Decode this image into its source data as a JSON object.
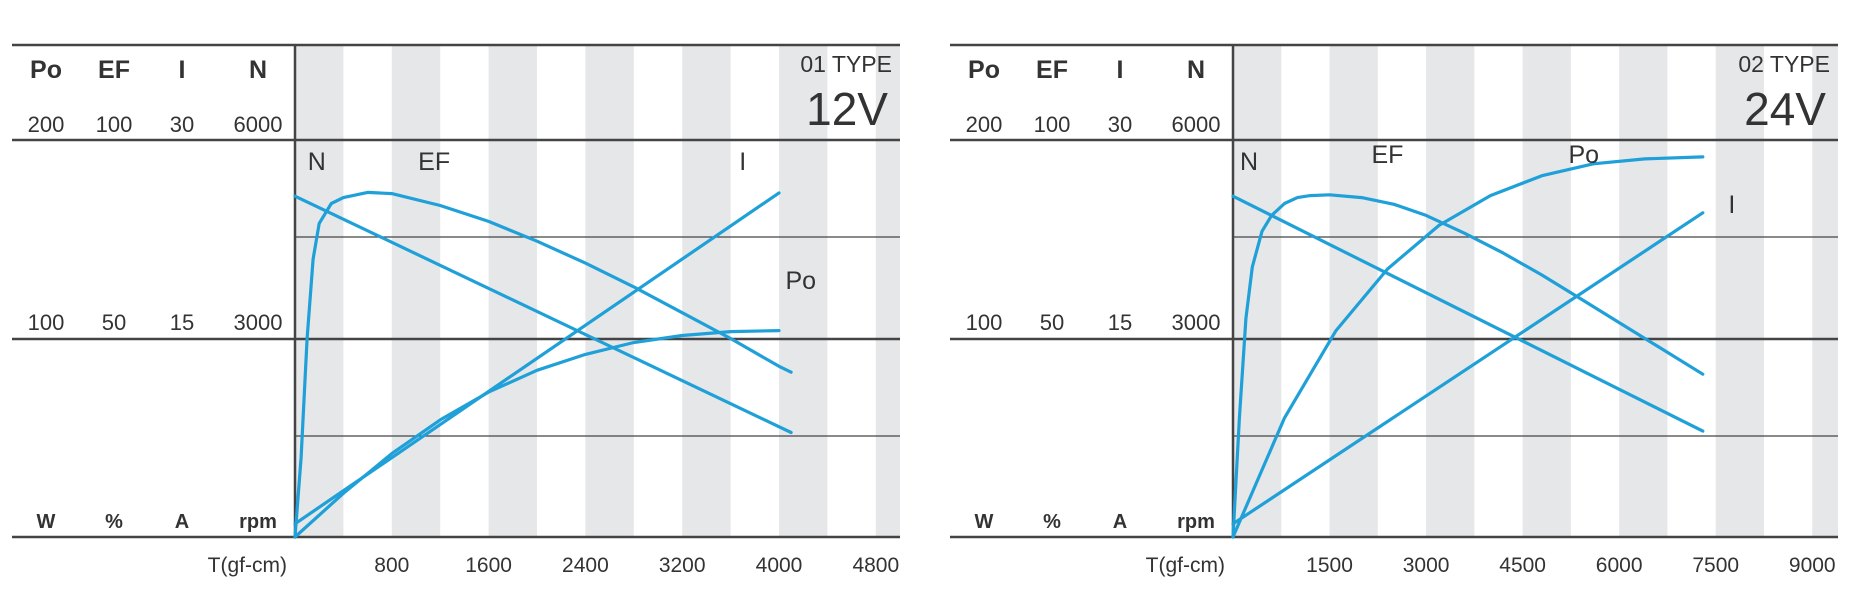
{
  "header_labels": [
    "Po",
    "EF",
    "I",
    "N"
  ],
  "unit_labels": [
    "W",
    "%",
    "A",
    "rpm"
  ],
  "colors": {
    "curve": "#1fa0d8",
    "stripe": "#e6e7e9",
    "axis": "#444444",
    "text": "#333333"
  },
  "chart_data": [
    {
      "type": "line",
      "title": "01 TYPE",
      "subtitle": "12V",
      "xlabel": "T(gf-cm)",
      "xlim": [
        0,
        5000
      ],
      "xticks": [
        800,
        1600,
        2400,
        3200,
        4000,
        4800
      ],
      "scales": {
        "Po": {
          "unit": "W",
          "ticks": [
            200,
            100
          ]
        },
        "EF": {
          "unit": "%",
          "ticks": [
            100,
            50
          ]
        },
        "I": {
          "unit": "A",
          "ticks": [
            30,
            15
          ]
        },
        "N": {
          "unit": "rpm",
          "ticks": [
            6000,
            3000
          ]
        }
      },
      "grid": true,
      "series": [
        {
          "name": "N",
          "scale": "N",
          "x": [
            0,
            4100
          ],
          "y": [
            5150,
            1580
          ]
        },
        {
          "name": "EF",
          "scale": "EF",
          "x": [
            0,
            50,
            100,
            150,
            200,
            300,
            400,
            600,
            800,
            1200,
            1600,
            2000,
            2400,
            2800,
            3200,
            3600,
            4000,
            4100
          ],
          "y": [
            0,
            20,
            50,
            70,
            79,
            84,
            85.5,
            86.8,
            86.5,
            83.5,
            79.5,
            74.5,
            69,
            63,
            56.5,
            50,
            43,
            41.5
          ]
        },
        {
          "name": "I",
          "scale": "I",
          "x": [
            0,
            4000
          ],
          "y": [
            1,
            26
          ]
        },
        {
          "name": "Po",
          "scale": "Po",
          "x": [
            0,
            400,
            800,
            1200,
            1600,
            2000,
            2400,
            2800,
            3200,
            3600,
            4000
          ],
          "y": [
            0,
            22,
            42,
            59,
            73,
            84,
            92,
            98,
            101.5,
            103.5,
            104
          ]
        }
      ],
      "annotations": [
        {
          "text": "N",
          "x": 180,
          "y": 5550
        },
        {
          "text": "EF",
          "x": 1150,
          "y": 5550
        },
        {
          "text": "I",
          "x": 3700,
          "y": 5550
        },
        {
          "text": "Po",
          "x": 4180,
          "y": 3750
        }
      ]
    },
    {
      "type": "line",
      "title": "02 TYPE",
      "subtitle": "24V",
      "xlabel": "T(gf-cm)",
      "xlim": [
        0,
        9400
      ],
      "xticks": [
        1500,
        3000,
        4500,
        6000,
        7500,
        9000
      ],
      "scales": {
        "Po": {
          "unit": "W",
          "ticks": [
            200,
            100
          ]
        },
        "EF": {
          "unit": "%",
          "ticks": [
            100,
            50
          ]
        },
        "I": {
          "unit": "A",
          "ticks": [
            30,
            15
          ]
        },
        "N": {
          "unit": "rpm",
          "ticks": [
            6000,
            3000
          ]
        }
      },
      "grid": true,
      "series": [
        {
          "name": "N",
          "scale": "N",
          "x": [
            0,
            7300
          ],
          "y": [
            5150,
            1600
          ]
        },
        {
          "name": "EF",
          "scale": "EF",
          "x": [
            0,
            100,
            200,
            300,
            450,
            600,
            800,
            1000,
            1200,
            1500,
            2000,
            2500,
            3000,
            3600,
            4200,
            4800,
            5400,
            6000,
            6600,
            7300
          ],
          "y": [
            0,
            30,
            55,
            68,
            77,
            81,
            84,
            85.5,
            86,
            86.2,
            85.5,
            83.8,
            81,
            76.5,
            71.5,
            66,
            60,
            54,
            48,
            41
          ]
        },
        {
          "name": "I",
          "scale": "I",
          "x": [
            0,
            7300
          ],
          "y": [
            1,
            24.5
          ]
        },
        {
          "name": "Po",
          "scale": "Po",
          "x": [
            0,
            800,
            1600,
            2400,
            3200,
            4000,
            4800,
            5600,
            6400,
            7300
          ],
          "y": [
            0,
            60,
            104,
            135,
            157,
            172,
            182,
            188,
            190.5,
            191.5
          ]
        }
      ],
      "annotations": [
        {
          "text": "N",
          "x": 250,
          "y": 5550
        },
        {
          "text": "EF",
          "x": 2400,
          "y": 5650
        },
        {
          "text": "Po",
          "x": 5450,
          "y": 5650
        },
        {
          "text": "I",
          "x": 7750,
          "y": 4900
        }
      ]
    }
  ]
}
